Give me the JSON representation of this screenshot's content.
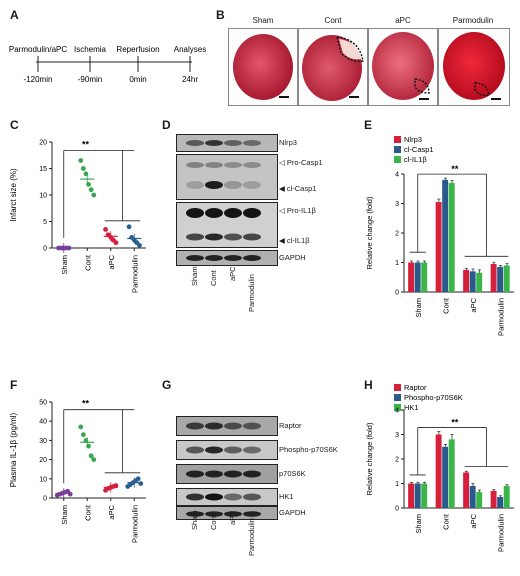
{
  "panels": {
    "A": "A",
    "B": "B",
    "C": "C",
    "D": "D",
    "E": "E",
    "F": "F",
    "G": "G",
    "H": "H"
  },
  "timeline": {
    "steps": [
      {
        "label": "Parmodulin/aPC",
        "time": "-120min"
      },
      {
        "label": "Ischemia",
        "time": "-90min"
      },
      {
        "label": "Reperfusion",
        "time": "0min"
      },
      {
        "label": "Analyses",
        "time": "24hr"
      }
    ]
  },
  "hearts": {
    "titles": [
      "Sham",
      "Cont",
      "aPC",
      "Parmodulin"
    ]
  },
  "groups": [
    "Sham",
    "Cont",
    "aPC",
    "Parmodulin"
  ],
  "sig": "**",
  "colors": {
    "sham": "#7b3f98",
    "cont": "#3aa655",
    "apc": "#d6203b",
    "parmodulin": "#2a5f8f",
    "red": "#d6203b",
    "blue": "#2a5a8c",
    "green": "#3bb54a"
  },
  "blot_d": {
    "rows": [
      "Nlrp3",
      "Pro-Casp1",
      "cl-Casp1",
      "Pro-IL1β",
      "cl-IL1β",
      "GAPDH"
    ]
  },
  "blot_g": {
    "rows": [
      "Raptor",
      "Phospho-p70S6K",
      "p70S6K",
      "HK1",
      "GAPDH"
    ]
  },
  "chart_data": [
    {
      "id": "C",
      "type": "scatter",
      "ylabel": "Infarct size (%)",
      "ylim": [
        0,
        20
      ],
      "yticks": [
        0,
        5,
        10,
        15,
        20
      ],
      "categories": [
        "Sham",
        "Cont",
        "aPC",
        "Parmodulin"
      ],
      "points": [
        [
          0,
          0,
          0,
          0,
          0
        ],
        [
          16.5,
          15.0,
          14.0,
          12.0,
          11.0,
          10.0
        ],
        [
          3.5,
          2.5,
          2.0,
          1.5,
          1.0
        ],
        [
          4.0,
          2.0,
          1.5,
          1.0,
          0.5
        ]
      ],
      "means": [
        0,
        13.0,
        2.2,
        1.8
      ]
    },
    {
      "id": "E",
      "type": "bar",
      "ylabel": "Relative change (fold)",
      "ylim": [
        0,
        4
      ],
      "yticks": [
        0,
        1,
        2,
        3,
        4
      ],
      "categories": [
        "Sham",
        "Cont",
        "aPC",
        "Parmodulin"
      ],
      "series": [
        {
          "name": "Nlrp3",
          "values": [
            1.0,
            3.05,
            0.75,
            0.95
          ],
          "errors": [
            0.05,
            0.1,
            0.05,
            0.06
          ]
        },
        {
          "name": "cl-Casp1",
          "values": [
            1.0,
            3.8,
            0.7,
            0.85
          ],
          "errors": [
            0.05,
            0.06,
            0.08,
            0.05
          ]
        },
        {
          "name": "cl-IL1β",
          "values": [
            1.0,
            3.7,
            0.65,
            0.9
          ],
          "errors": [
            0.05,
            0.08,
            0.1,
            0.06
          ]
        }
      ]
    },
    {
      "id": "F",
      "type": "scatter",
      "ylabel": "Plasma IL-1β (pg/ml)",
      "ylim": [
        0,
        50
      ],
      "yticks": [
        0,
        10,
        20,
        30,
        40,
        50
      ],
      "categories": [
        "Sham",
        "Cont",
        "aPC",
        "Parmodulin"
      ],
      "points": [
        [
          1.5,
          2.0,
          2.5,
          3.0,
          3.5,
          2.0
        ],
        [
          37.0,
          33.0,
          30.0,
          27.0,
          22.0,
          20.0
        ],
        [
          4.0,
          5.0,
          5.5,
          6.0,
          6.5
        ],
        [
          6.0,
          7.0,
          8.0,
          9.0,
          10.0,
          7.5
        ]
      ],
      "means": [
        2.5,
        29.0,
        5.5,
        8.0
      ]
    },
    {
      "id": "H",
      "type": "bar",
      "ylabel": "Relative change (fold)",
      "ylim": [
        0,
        4
      ],
      "yticks": [
        0,
        1,
        2,
        3,
        4
      ],
      "categories": [
        "Sham",
        "Cont",
        "aPC",
        "Parmodulin"
      ],
      "series": [
        {
          "name": "Raptor",
          "values": [
            1.0,
            3.0,
            1.45,
            0.7
          ],
          "errors": [
            0.05,
            0.12,
            0.05,
            0.05
          ]
        },
        {
          "name": "Phospho-p70S6K",
          "values": [
            1.0,
            2.5,
            0.9,
            0.45
          ],
          "errors": [
            0.05,
            0.1,
            0.1,
            0.05
          ]
        },
        {
          "name": "HK1",
          "values": [
            1.0,
            2.8,
            0.65,
            0.9
          ],
          "errors": [
            0.05,
            0.2,
            0.08,
            0.05
          ]
        }
      ]
    }
  ]
}
